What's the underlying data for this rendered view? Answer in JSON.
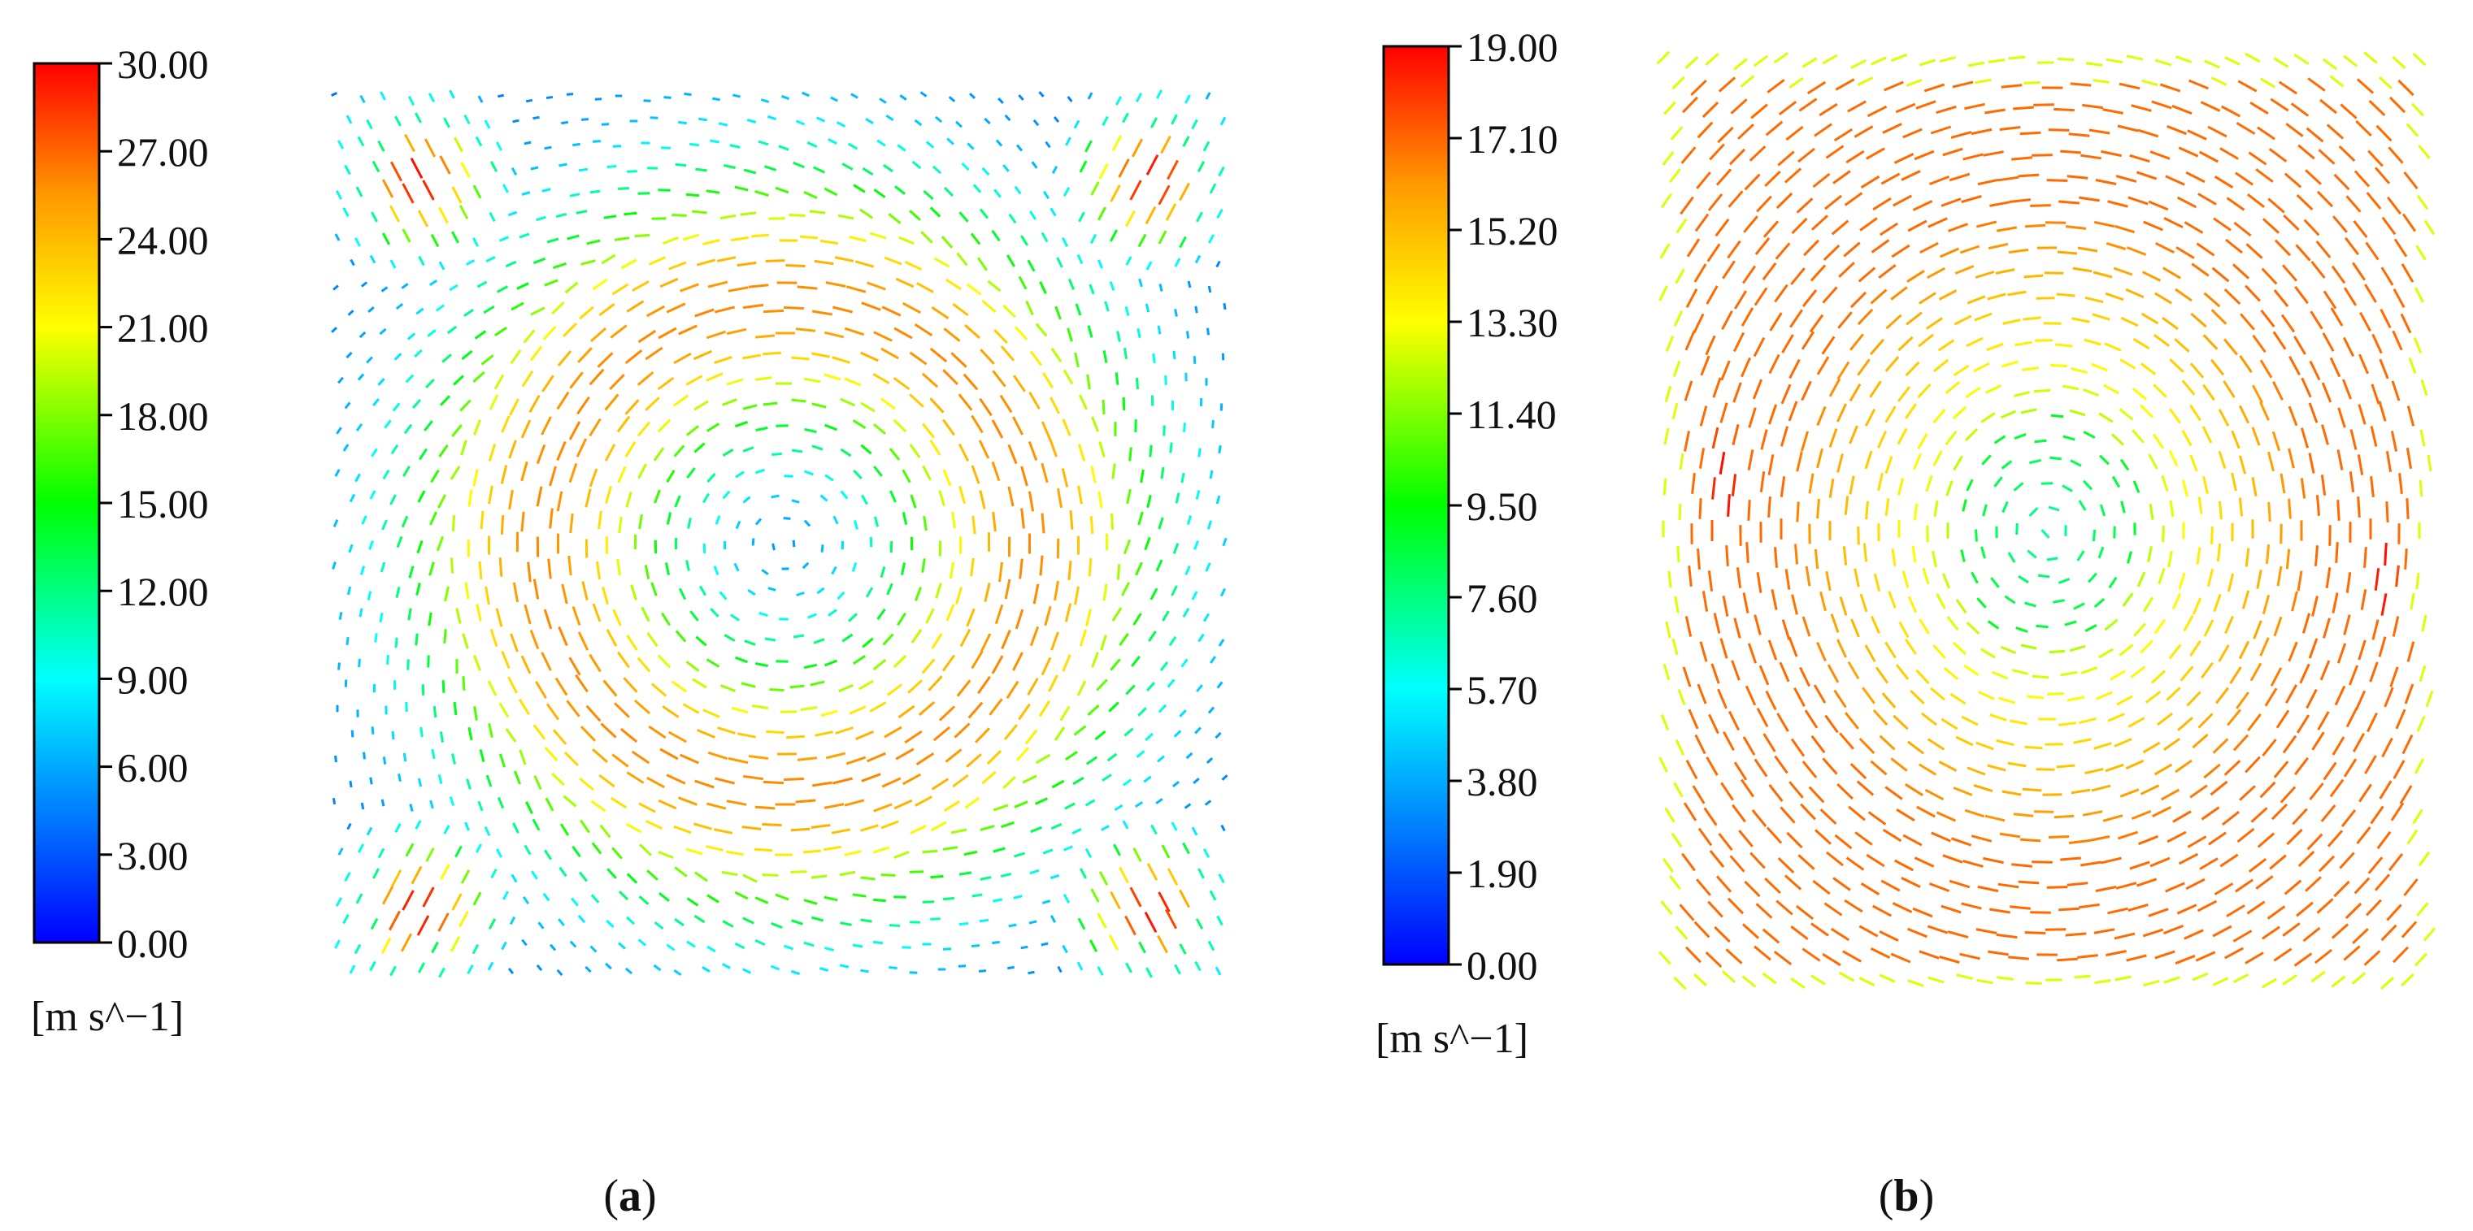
{
  "chart_data": [
    {
      "type": "vector-field",
      "panel_label": "(a)",
      "panel_letter": "a",
      "colorbar": {
        "min": 0,
        "max": 30,
        "ticks": [
          "30.00",
          "27.00",
          "24.00",
          "21.00",
          "18.00",
          "15.00",
          "12.00",
          "9.00",
          "6.00",
          "3.00",
          "0.00"
        ],
        "unit": "[m s^−1]"
      },
      "field": {
        "pattern": "central-vortex-with-corner-jets",
        "domain_shape": "square",
        "aspect": 1.0,
        "max_speed": 30,
        "corner_jet_speed": 30,
        "ring_speed": 22,
        "edge_speed": 9
      }
    },
    {
      "type": "vector-field",
      "panel_label": "(b)",
      "panel_letter": "b",
      "colorbar": {
        "min": 0,
        "max": 19,
        "ticks": [
          "19.00",
          "17.10",
          "15.20",
          "13.30",
          "11.40",
          "9.50",
          "7.60",
          "5.70",
          "3.80",
          "1.90",
          "0.00"
        ],
        "unit": "[m s^−1]"
      },
      "field": {
        "pattern": "single-central-vortex",
        "domain_shape": "rectangle",
        "aspect": 0.81,
        "max_speed": 19,
        "ring_speed": 17,
        "side_jet_speed": 19,
        "edge_speed": 10
      }
    }
  ]
}
